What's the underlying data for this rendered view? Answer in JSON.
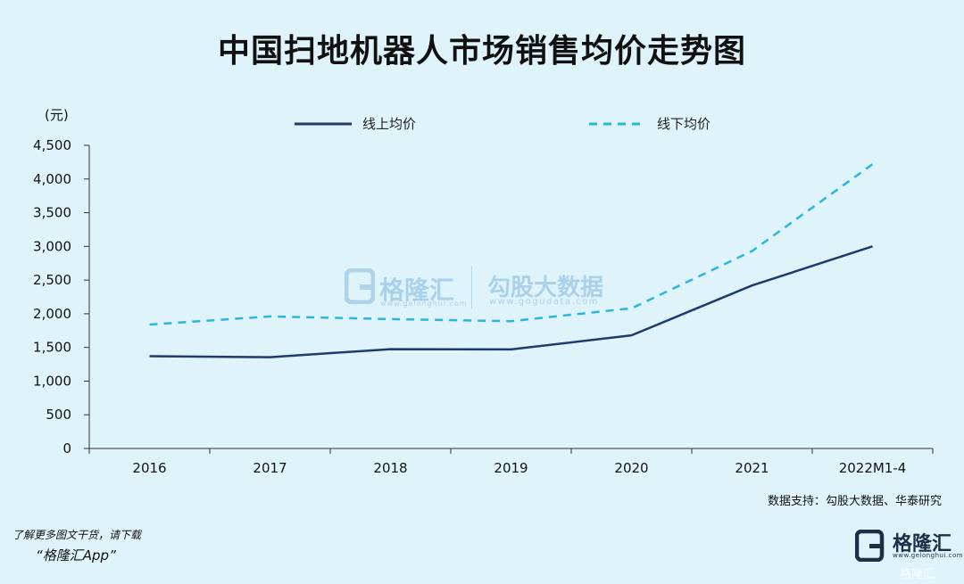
{
  "title": "中国扫地机器人市场销售均价走势图",
  "unit_label": "(元)",
  "legend": {
    "online": "线上均价",
    "offline": "线下均价"
  },
  "source": "数据支持：勾股大数据、华泰研究",
  "promo": {
    "line1": "了解更多图文干货，请下载",
    "line2": "“格隆汇App”"
  },
  "watermark": {
    "logo_text": "格隆汇",
    "logo_url": "www.gelonghui.com",
    "right_text": "勾股大数据",
    "right_url": "www.gogudata.com"
  },
  "brand": {
    "text": "格隆汇",
    "url": "www.gelonghui.com",
    "corner": "格隆汇"
  },
  "colors": {
    "online": "#1f3a6e",
    "offline": "#29b6e6",
    "background": "#dff3fb"
  },
  "chart_data": {
    "type": "line",
    "title": "中国扫地机器人市场销售均价走势图",
    "categories": [
      "2016",
      "2017",
      "2018",
      "2019",
      "2020",
      "2021",
      "2022M1-4"
    ],
    "series": [
      {
        "name": "线上均价",
        "values": [
          1370,
          1355,
          1475,
          1470,
          1680,
          2420,
          3000
        ],
        "style": "solid"
      },
      {
        "name": "线下均价",
        "values": [
          1840,
          1960,
          1920,
          1890,
          2080,
          2930,
          4220
        ],
        "style": "dashed"
      }
    ],
    "ylim": [
      0,
      4500
    ],
    "yticks": [
      0,
      500,
      1000,
      1500,
      2000,
      2500,
      3000,
      3500,
      4000,
      4500
    ],
    "ytick_labels": [
      "0",
      "500",
      "1,000",
      "1,500",
      "2,000",
      "2,500",
      "3,000",
      "3,500",
      "4,000",
      "4,500"
    ],
    "ylabel": "(元)",
    "legend_position": "top",
    "grid": false
  }
}
